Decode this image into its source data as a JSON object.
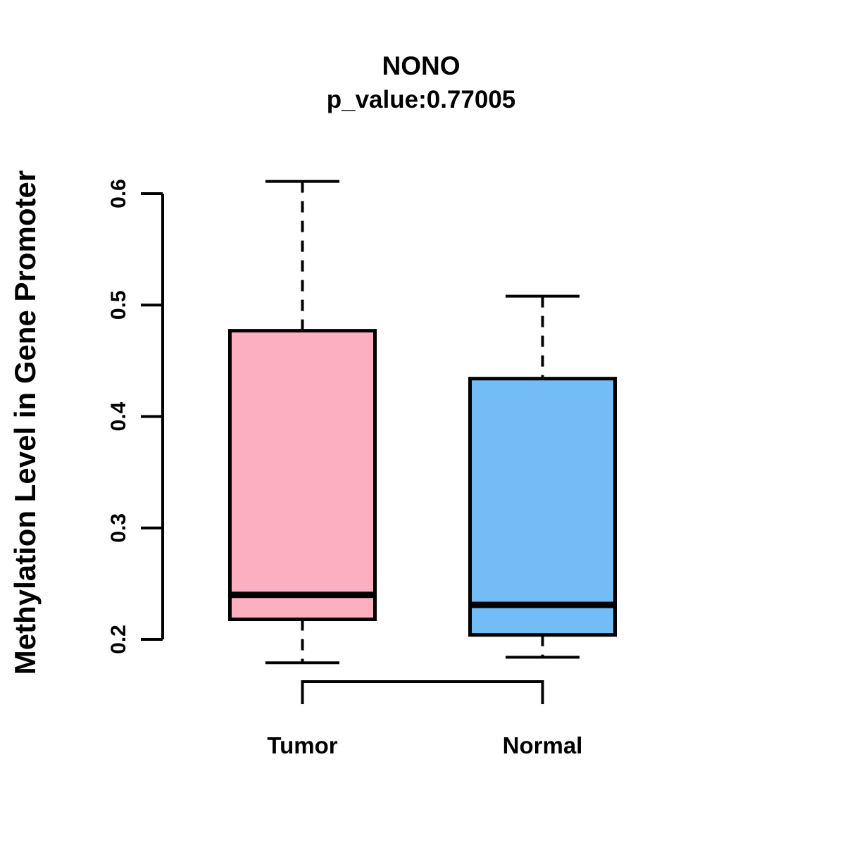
{
  "chart_data": {
    "type": "boxplot",
    "title": "NONO",
    "subtitle": "p_value:0.77005",
    "ylabel": "Methylation Level in Gene Promoter",
    "xlabel": "",
    "categories": [
      "Tumor",
      "Normal"
    ],
    "ytick_labels": [
      "0.2",
      "0.3",
      "0.4",
      "0.5",
      "0.6"
    ],
    "ytick_values": [
      0.2,
      0.3,
      0.4,
      0.5,
      0.6
    ],
    "axis_range": [
      0.2,
      0.6
    ],
    "grid": false,
    "legend": "none",
    "series": [
      {
        "name": "Tumor",
        "fill_color": "#FCAFC1",
        "whisker_low": 0.179,
        "q1": 0.218,
        "median": 0.24,
        "q3": 0.477,
        "whisker_high": 0.611
      },
      {
        "name": "Normal",
        "fill_color": "#73BCF6",
        "whisker_low": 0.184,
        "q1": 0.204,
        "median": 0.231,
        "q3": 0.434,
        "whisker_high": 0.508
      }
    ],
    "annotations": [
      {
        "type": "comparison-bracket",
        "between": [
          "Tumor",
          "Normal"
        ],
        "label": ""
      }
    ],
    "line_color": "#000000",
    "text_color": "#000000",
    "background": "#FFFFFF"
  }
}
